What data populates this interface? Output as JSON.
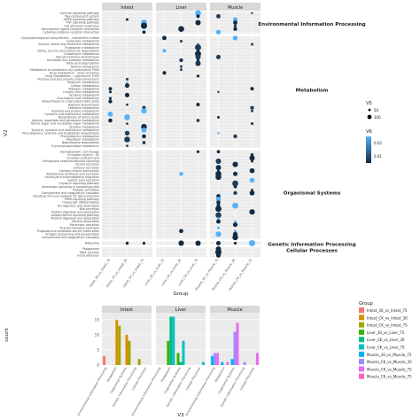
{
  "chart_data": [
    {
      "type": "scatter",
      "facets": [
        "Intest",
        "Liver",
        "Muscle"
      ],
      "xlabel": "Group",
      "ylabel": "V2",
      "x_categories": [
        "Intest_30_vs_Intest_75",
        "Intest_CK_vs_Intest_30",
        "Intest_CK_vs_Intest_75",
        "Liver_30_vs_Liver_75",
        "Liver_CK_vs_Liver_30",
        "Liver_CK_vs_Liver_75",
        "Muscle_30_vs_Muscle_75",
        "Muscle_CK_vs_Muscle_30",
        "Muscle_CK_vs_Muscle_75"
      ],
      "strips": [
        {
          "name": "Environmental Information Processing",
          "terms": [
            "Calcium signaling pathway",
            "Two-component system",
            "AMPK signaling pathway",
            "TNF signaling pathway",
            "Cell adhesion molecules",
            "Neuroactive ligand-receptor interaction",
            "Cytokine-cytokine receptor interaction"
          ]
        },
        {
          "name": "Metabolism",
          "terms": [
            "Glycosaminoglycan biosynthesis - chondroitin sulfate",
            "Galactose metabolism",
            "Glycine, serine and threonine metabolism",
            "Tryptophan metabolism",
            "Valine, leucine and isoleucine degradation",
            "Glutathione metabolism",
            "Steroid hormone biosynthesis",
            "Ascorbate and aldarate metabolism",
            "Fatty acid degradation",
            "Retinol metabolism",
            "Metabolism of xenobiotics by cytochrome P450",
            "Drug metabolism - other enzymes",
            "Drug metabolism - cytochrome P450",
            "Pentose and glucuronate interconversions",
            "Porphyrin metabolism",
            "Carbon metabolism",
            "Nitrogen metabolism",
            "Linoleic acid metabolism",
            "Tyrosine metabolism",
            "Arachidonic acid metabolism",
            "Biosynthesis of unsaturated fatty acids",
            "Arginine biosynthesis",
            "Histidine metabolism",
            "Arginine and proline metabolism",
            "Cysteine and methionine metabolism",
            "Biosynthesis of amino acids",
            "Alanine, aspartate and glutamate metabolism",
            "Amino sugar and nucleotide sugar metabolism",
            "Tyrosine metabolism",
            "Tyrosine, cysteine and methionine metabolism",
            "Phenylalanine, tyrosine and tryptophan biosynthesis",
            "Phenylalanine metabolism",
            "Riboflavin metabolism",
            "Naphthalene degradation",
            "Glycerophospholipid metabolism"
          ]
        },
        {
          "name": "Organismal Systems",
          "terms": [
            "Hematopoietic cell lineage",
            "Circadian rhythm - fly",
            "Circadian entrainment",
            "Retrograde endocannabinoid signaling",
            "Insulin secretion",
            "Salivary secretion",
            "Cardiac muscle contraction",
            "Aldosterone synthesis and secretion",
            "Leukocyte transendothelial migration",
            "Gastric acid secretion",
            "Oxytocin signaling pathway",
            "Adrenergic signaling in cardiomyocytes",
            "Platelet activation",
            "Complement and coagulation cascades",
            "Intestinal immune network for IgA production",
            "PPAR signaling pathway",
            "Osteoclast differentiation",
            "Fat digestion and absorption",
            "Bile secretion",
            "Protein digestion and absorption",
            "Adipocytokine signaling pathway",
            "Vitamin digestion and absorption",
            "Mineral absorption",
            "Pancreatic secretion",
            "Thyroid hormone synthesis",
            "Progesterone-mediated oocyte maturation",
            "Antigen processing and presentation",
            "Complement and coagulation cascades"
          ]
        },
        {
          "name": "Genetic Information Processing",
          "terms": [
            "Ribosome"
          ]
        },
        {
          "name": "Cellular Processes",
          "terms": [
            "Phagosome",
            "Tight junction",
            "Focal adhesion"
          ]
        }
      ],
      "size_legend": {
        "title": "V5",
        "labels": [
          "50",
          "100"
        ]
      },
      "color_legend": {
        "title": "V6",
        "labels": [
          "0.02",
          "0.01"
        ],
        "low_color": "#132b43",
        "high_color": "#56b1f7"
      },
      "grid": true,
      "legend_position": "right"
    },
    {
      "type": "bar",
      "facets": [
        "Intest",
        "Liver",
        "Muscle"
      ],
      "categories": [
        "Environmental Information Processing",
        "Metabolism",
        "Organismal Systems",
        "Genetic Information Processing",
        "Cellular Processes"
      ],
      "xlabel": "V3",
      "ylabel": "count",
      "yticks": [
        "0",
        "5",
        "10",
        "15"
      ],
      "ylim": [
        0,
        17
      ],
      "series": [
        {
          "name": "Intest_30_vs_Intest_75",
          "color": "#F8766D",
          "values": [
            3,
            0,
            0,
            0,
            0
          ]
        },
        {
          "name": "Intest_CK_vs_Intest_30",
          "color": "#D89000",
          "values": [
            0,
            15,
            10,
            0,
            0
          ]
        },
        {
          "name": "Intest_CK_vs_Intest_75",
          "color": "#A3A500",
          "values": [
            0,
            13,
            8,
            2,
            0
          ]
        },
        {
          "name": "Liver_30_vs_Liver_75",
          "color": "#39B600",
          "values": [
            0,
            8,
            4,
            0,
            0
          ]
        },
        {
          "name": "Liver_CK_vs_Liver_30",
          "color": "#00BF7D",
          "values": [
            0,
            16,
            1,
            0,
            0
          ]
        },
        {
          "name": "Liver_CK_vs_Liver_75",
          "color": "#00BFC4",
          "values": [
            0,
            16,
            8,
            0,
            1
          ]
        },
        {
          "name": "Muscle_30_vs_Muscle_75",
          "color": "#00B0F6",
          "values": [
            3,
            1,
            2,
            0,
            0
          ]
        },
        {
          "name": "Muscle_CK_vs_Muscle_30",
          "color": "#9590FF",
          "values": [
            4,
            0,
            11,
            1,
            0
          ]
        },
        {
          "name": "Muscle_CK_vs_Muscle_75",
          "color": "#E76BF3",
          "values": [
            4,
            1,
            14,
            0,
            4
          ]
        }
      ],
      "extra_series": [
        {
          "name": "Muscle_CK_vs_Muscle_75",
          "color": "#FF62BC"
        }
      ],
      "legend_title": "Group",
      "legend_position": "right"
    }
  ]
}
